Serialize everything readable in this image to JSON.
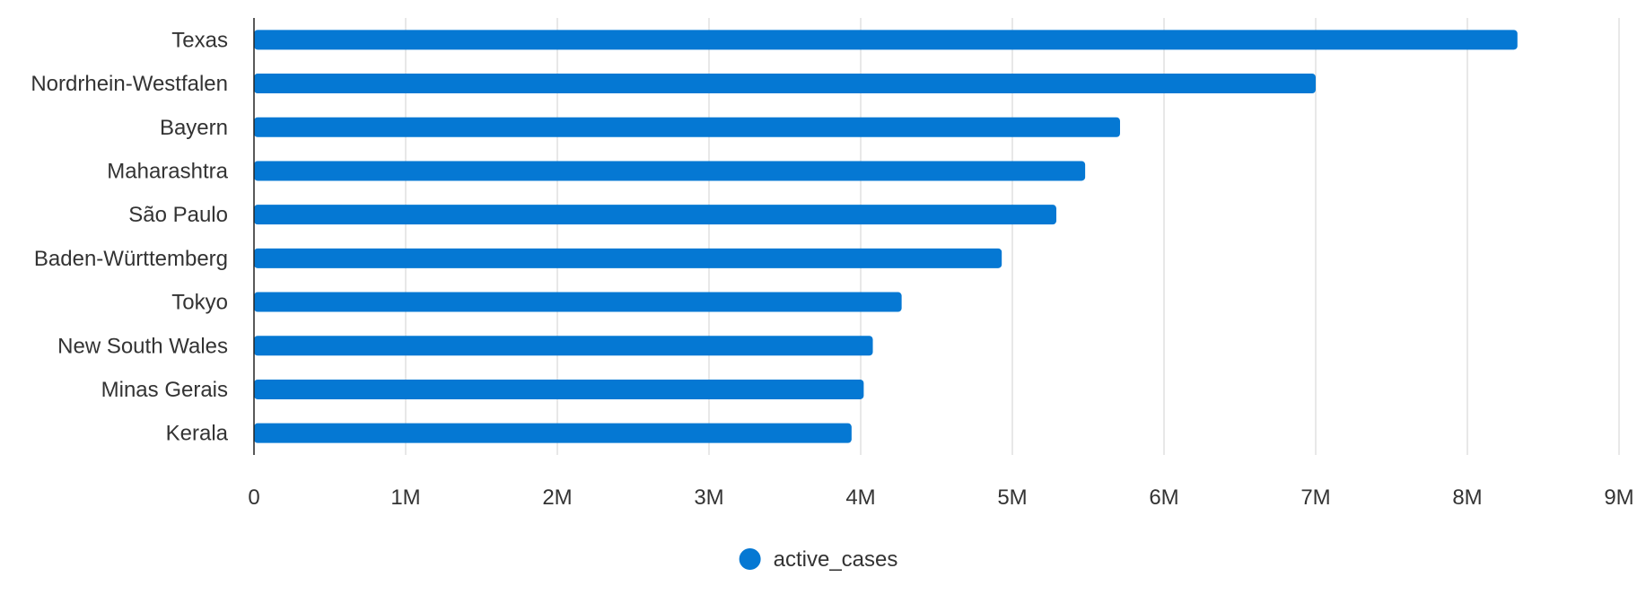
{
  "chart_data": {
    "type": "bar",
    "orientation": "horizontal",
    "categories": [
      "Texas",
      "Nordrhein-Westfalen",
      "Bayern",
      "Maharashtra",
      "São Paulo",
      "Baden-Württemberg",
      "Tokyo",
      "New South Wales",
      "Minas Gerais",
      "Kerala"
    ],
    "series": [
      {
        "name": "active_cases",
        "color": "#0578d3",
        "values": [
          8330000,
          7000000,
          5710000,
          5480000,
          5290000,
          4930000,
          4270000,
          4080000,
          4020000,
          3940000
        ]
      }
    ],
    "xlim": [
      0,
      9000000
    ],
    "x_ticks": [
      0,
      1000000,
      2000000,
      3000000,
      4000000,
      5000000,
      6000000,
      7000000,
      8000000,
      9000000
    ],
    "x_tick_labels": [
      "0",
      "1M",
      "2M",
      "3M",
      "4M",
      "5M",
      "6M",
      "7M",
      "8M",
      "9M"
    ],
    "grid": "vertical",
    "legend_position": "bottom-center",
    "title": "",
    "xlabel": "",
    "ylabel": ""
  }
}
